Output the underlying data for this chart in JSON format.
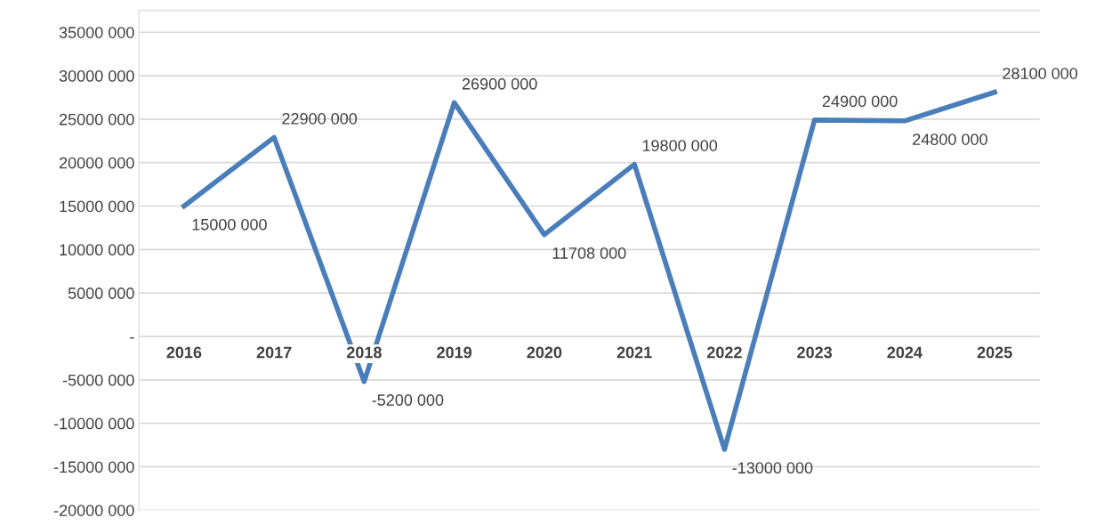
{
  "chart_data": {
    "type": "line",
    "categories": [
      "2016",
      "2017",
      "2018",
      "2019",
      "2020",
      "2021",
      "2022",
      "2023",
      "2024",
      "2025"
    ],
    "series": [
      {
        "color": "#4a7ebb",
        "values": [
          15000000,
          22900000,
          -5200000,
          26900000,
          11708000,
          19800000,
          -13000000,
          24900000,
          24800000,
          28100000
        ],
        "value_labels": [
          "15000 000",
          "22900 000",
          "-5200 000",
          "26900 000",
          "11708 000",
          "19800 000",
          "-13000 000",
          "24900 000",
          "24800 000",
          "28100 000"
        ]
      }
    ],
    "ylim": [
      -20000000,
      37500000
    ],
    "yticks": [
      {
        "value": -20000000,
        "label": "-20000 000"
      },
      {
        "value": -15000000,
        "label": "-15000 000"
      },
      {
        "value": -10000000,
        "label": "-10000 000"
      },
      {
        "value": -5000000,
        "label": "-5000 000"
      },
      {
        "value": 0,
        "label": "-"
      },
      {
        "value": 5000000,
        "label": "5000 000"
      },
      {
        "value": 10000000,
        "label": "10000 000"
      },
      {
        "value": 15000000,
        "label": "15000 000"
      },
      {
        "value": 20000000,
        "label": "20000 000"
      },
      {
        "value": 25000000,
        "label": "25000 000"
      },
      {
        "value": 30000000,
        "label": "30000 000"
      },
      {
        "value": 35000000,
        "label": "35000 000"
      }
    ],
    "grid": "y",
    "marker": "none",
    "line_style": "solid",
    "legend": false
  }
}
